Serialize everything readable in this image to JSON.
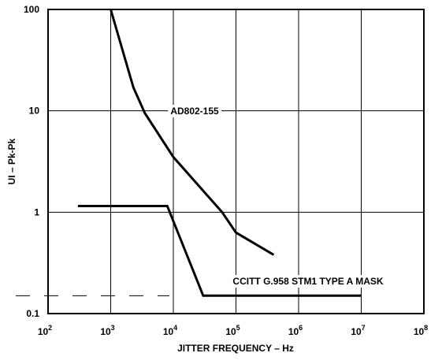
{
  "chart_data": {
    "type": "line",
    "xlabel": "JITTER FREQUENCY – Hz",
    "ylabel": "UI – Pk-Pk",
    "xscale": "log",
    "yscale": "log",
    "xlim": [
      100,
      100000000
    ],
    "ylim": [
      0.1,
      100
    ],
    "grid": true,
    "x_ticks": [
      {
        "base": "10",
        "exp": "2",
        "value": 100
      },
      {
        "base": "10",
        "exp": "3",
        "value": 1000
      },
      {
        "base": "10",
        "exp": "4",
        "value": 10000
      },
      {
        "base": "10",
        "exp": "5",
        "value": 100000
      },
      {
        "base": "10",
        "exp": "6",
        "value": 1000000
      },
      {
        "base": "10",
        "exp": "7",
        "value": 10000000
      },
      {
        "base": "10",
        "exp": "8",
        "value": 100000000
      }
    ],
    "y_ticks": [
      {
        "label": "100",
        "value": 100
      },
      {
        "label": "10",
        "value": 10
      },
      {
        "label": "1",
        "value": 1
      },
      {
        "label": "0.1",
        "value": 0.1
      }
    ],
    "series": [
      {
        "name": "AD802-155",
        "points": [
          [
            1000,
            100
          ],
          [
            2300,
            17
          ],
          [
            3500,
            9.5
          ],
          [
            10000,
            3.5
          ],
          [
            60000,
            1
          ],
          [
            100000,
            0.63
          ],
          [
            400000,
            0.38
          ]
        ]
      },
      {
        "name": "CCITT G.958 STM1 TYPE A MASK",
        "points": [
          [
            300,
            1.15
          ],
          [
            8000,
            1.15
          ],
          [
            30000,
            0.15
          ],
          [
            10000000,
            0.15
          ]
        ]
      }
    ],
    "annotations": [
      "AD802-155",
      "CCITT G.958 STM1 TYPE A MASK"
    ]
  }
}
